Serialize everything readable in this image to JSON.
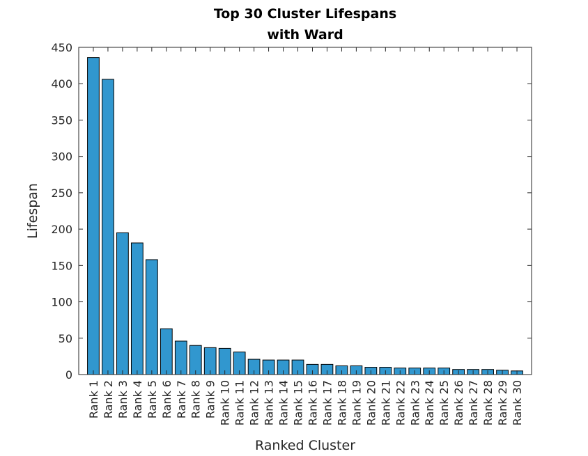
{
  "chart_data": {
    "type": "bar",
    "title": [
      "Top 30 Cluster Lifespans",
      "with Ward"
    ],
    "xlabel": "Ranked Cluster",
    "ylabel": "Lifespan",
    "ylim": [
      0,
      450
    ],
    "yticks": [
      0,
      50,
      100,
      150,
      200,
      250,
      300,
      350,
      400,
      450
    ],
    "categories": [
      "Rank 1",
      "Rank 2",
      "Rank 3",
      "Rank 4",
      "Rank 5",
      "Rank 6",
      "Rank 7",
      "Rank 8",
      "Rank 9",
      "Rank 10",
      "Rank 11",
      "Rank 12",
      "Rank 13",
      "Rank 14",
      "Rank 15",
      "Rank 16",
      "Rank 17",
      "Rank 18",
      "Rank 19",
      "Rank 20",
      "Rank 21",
      "Rank 22",
      "Rank 23",
      "Rank 24",
      "Rank 25",
      "Rank 26",
      "Rank 27",
      "Rank 28",
      "Rank 29",
      "Rank 30"
    ],
    "values": [
      436,
      406,
      195,
      181,
      158,
      63,
      46,
      40,
      37,
      36,
      31,
      21,
      20,
      20,
      20,
      14,
      14,
      12,
      12,
      10,
      10,
      9,
      9,
      9,
      9,
      7,
      7,
      7,
      6,
      5
    ],
    "bar_color": "#3197cf",
    "grid": false
  }
}
